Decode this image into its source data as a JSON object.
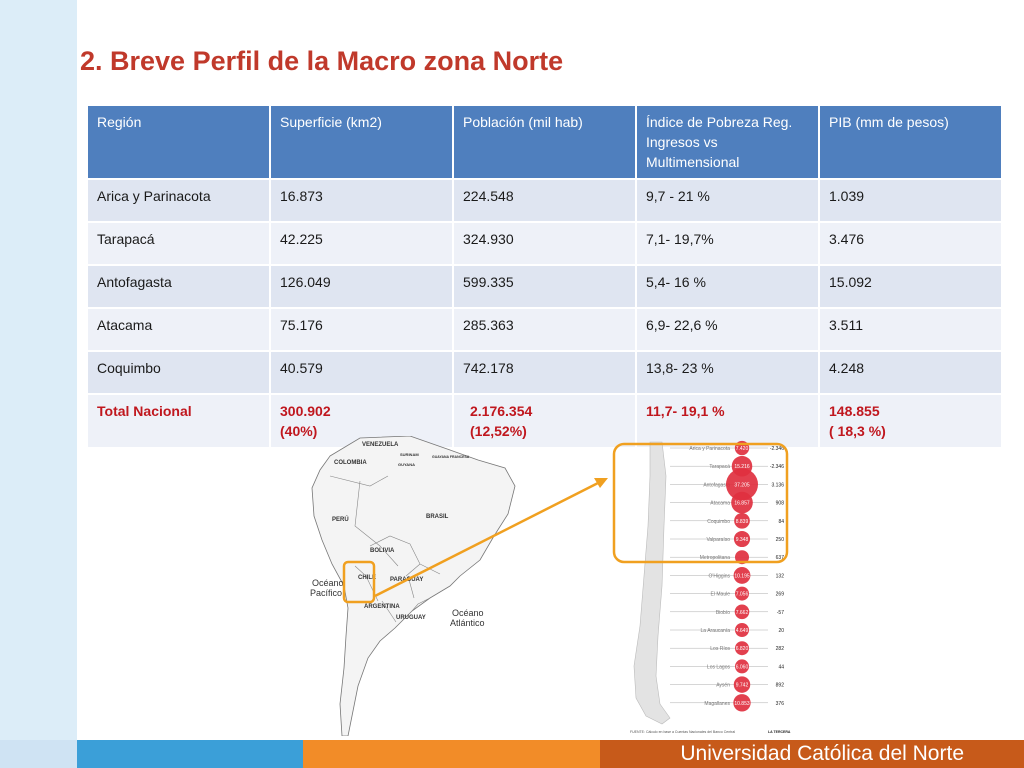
{
  "title": "2. Breve Perfil de la Macro zona Norte",
  "table": {
    "headers": [
      "Región",
      "Superficie (km2)",
      "Población  (mil hab)",
      "Índice de Pobreza Reg. Ingresos vs Multimensional",
      "PIB  (mm de pesos)"
    ],
    "rows": [
      [
        "Arica y Parinacota",
        "16.873",
        "224.548",
        "9,7 - 21 %",
        "1.039"
      ],
      [
        "Tarapacá",
        "42.225",
        "324.930",
        "7,1- 19,7%",
        "3.476"
      ],
      [
        "Antofagasta",
        "126.049",
        "599.335",
        "5,4- 16 %",
        "15.092"
      ],
      [
        "Atacama",
        "75.176",
        "285.363",
        "6,9- 22,6  %",
        "3.511"
      ],
      [
        "Coquimbo",
        "40.579",
        "742.178",
        "13,8- 23 %",
        "4.248"
      ]
    ],
    "total": {
      "label": "Total Nacional",
      "superficie": "300.902",
      "superficie_pct": "(40%)",
      "poblacion": "2.176.354",
      "poblacion_pct": "(12,52%)",
      "pobreza": "11,7- 19,1 %",
      "pib": "148.855",
      "pib_pct": "( 18,3 %)"
    }
  },
  "south_america_map": {
    "countries": [
      "VENEZUELA",
      "COLOMBIA",
      "SURINAM",
      "GUYANA",
      "GUAYANA FRANCESA",
      "BRASIL",
      "PERÚ",
      "BOLIVIA",
      "CHILE",
      "PARAGUAY",
      "ARGENTINA",
      "URUGUAY"
    ],
    "oceans": {
      "pacific_1": "Océano",
      "pacific_2": "Pacífico",
      "atlantic_1": "Océano",
      "atlantic_2": "Atlántico"
    }
  },
  "chile_map": {
    "regions": [
      {
        "name": "Arica y Parinacota",
        "pib": "7.420",
        "growth": "-2.346"
      },
      {
        "name": "Tarapacá",
        "pib": "15.216",
        "growth": "-2.346"
      },
      {
        "name": "Antofagasta",
        "pib": "37.205",
        "growth": "3.136"
      },
      {
        "name": "Atacama",
        "pib": "16.857",
        "growth": "908"
      },
      {
        "name": "Coquimbo",
        "pib": "8.839",
        "growth": "84"
      },
      {
        "name": "Valparaíso",
        "pib": "9.348",
        "growth": "250"
      },
      {
        "name": "Metropolitana",
        "pib": "",
        "growth": "637"
      },
      {
        "name": "O'Higgins",
        "pib": "10.195",
        "growth": "132"
      },
      {
        "name": "El Maule",
        "pib": "7.056",
        "growth": "269"
      },
      {
        "name": "Biobío",
        "pib": "7.662",
        "growth": "-57"
      },
      {
        "name": "La Araucanía",
        "pib": "4.649",
        "growth": "20"
      },
      {
        "name": "Los Ríos",
        "pib": "6.820",
        "growth": "282"
      },
      {
        "name": "Los Lagos",
        "pib": "6.060",
        "growth": "44"
      },
      {
        "name": "Aysén",
        "pib": "9.742",
        "growth": "892"
      },
      {
        "name": "Magallanes",
        "pib": "10.853",
        "growth": "376"
      }
    ],
    "source_note": "FUENTE: Cálculo en base a Cuentas Nacionales del Banco Central",
    "source_brand": "LA TERCERA"
  },
  "colors": {
    "title": "#c0392b",
    "header_bg": "#4f7fbe",
    "total_text": "#c0171e",
    "highlight": "#f0a020",
    "bubble": "#e0303f"
  },
  "footer": {
    "institution": "Universidad Católica del Norte"
  }
}
